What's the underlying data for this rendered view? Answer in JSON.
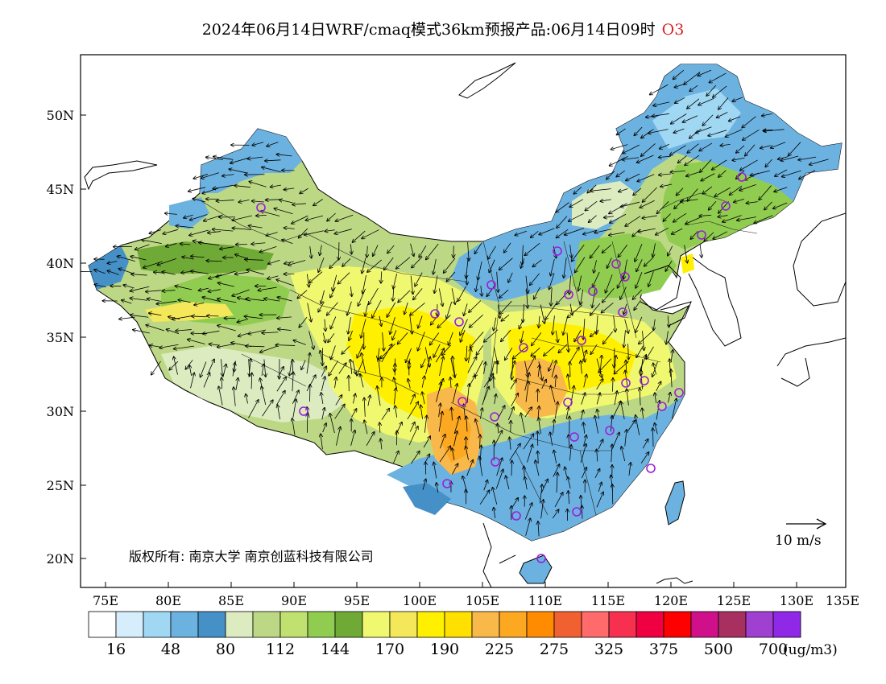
{
  "title": {
    "text": "2024年06月14日WRF/cmaq模式36km预报产品:06月14日09时",
    "species": "O3"
  },
  "axes": {
    "lon_ticks": [
      "75E",
      "80E",
      "85E",
      "90E",
      "95E",
      "100E",
      "105E",
      "110E",
      "115E",
      "120E",
      "125E",
      "130E",
      "135E"
    ],
    "lat_ticks": [
      "50N",
      "45N",
      "40N",
      "35N",
      "30N",
      "25N",
      "20N"
    ]
  },
  "copyright": "版权所有: 南京大学  南京创蓝科技有限公司",
  "wind_reference": {
    "label": "10 m/s"
  },
  "colorbar": {
    "colors": [
      "#ffffff",
      "#d6eefb",
      "#a0d8f4",
      "#6cb2e0",
      "#4690c8",
      "#dcecc0",
      "#bcd884",
      "#c0e070",
      "#90cc50",
      "#70aa36",
      "#f0f870",
      "#f4e85a",
      "#fff000",
      "#ffe000",
      "#f8b84a",
      "#fca820",
      "#ff8c00",
      "#f06030",
      "#ff6a6a",
      "#f83050",
      "#f00040",
      "#ff0000",
      "#d0108a",
      "#a83060",
      "#a040d0",
      "#9028e8"
    ],
    "labels": [
      "16",
      "48",
      "80",
      "112",
      "144",
      "170",
      "190",
      "225",
      "275",
      "325",
      "375",
      "500",
      "700"
    ],
    "unit": "(ug/m3)"
  },
  "legend_icons": {
    "city_marker": "city-circle-icon",
    "wind_arrow": "wind-arrow-icon"
  },
  "colors": {
    "ocean": "#ffffff",
    "title_species": "#e02020",
    "city_marker": "#9c1ed8"
  }
}
